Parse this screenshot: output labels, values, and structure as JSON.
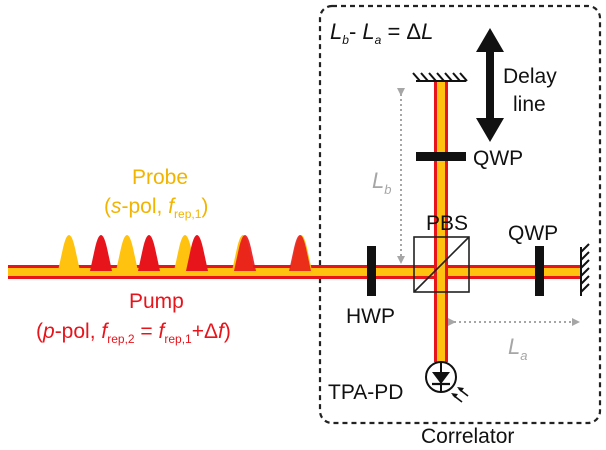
{
  "diagram": {
    "correlator_label": "Correlator",
    "delay_line": [
      "Delay",
      "line"
    ],
    "qwp_top": "QWP",
    "qwp_right": "QWP",
    "pbs": "PBS",
    "hwp": "HWP",
    "tpa_pd": "TPA-PD",
    "probe": {
      "title": "Probe",
      "sub_open": "(",
      "s": "s",
      "mid": "-pol, ",
      "f": "f",
      "f_sub": "rep,1",
      "close": ")"
    },
    "pump": {
      "title": "Pump",
      "open": "(",
      "p": "p",
      "mid": "-pol, ",
      "f1": "f",
      "f1_sub": "rep,2",
      "eq": " = ",
      "f2": "f",
      "f2_sub": "rep,1",
      "plus": "+Δ",
      "f3": "f",
      "close": ")"
    },
    "equation": {
      "Lb": "L",
      "Lb_sub": "b",
      "dash": "- ",
      "La": "L",
      "La_sub": "a",
      "eq": " = Δ",
      "L": "L"
    },
    "Lb_label": {
      "L": "L",
      "sub": "b"
    },
    "La_label": {
      "L": "L",
      "sub": "a"
    },
    "colors": {
      "beam_outer": "#e8141c",
      "beam_inner": "#ffc20e",
      "probe_pulse": "#ffc20e",
      "pump_pulse": "#e8141c",
      "dim_gray": "#a6a6a6",
      "text": "#111111"
    },
    "icons": [
      "mirror-icon",
      "photodiode-icon",
      "double-arrow-icon"
    ]
  }
}
